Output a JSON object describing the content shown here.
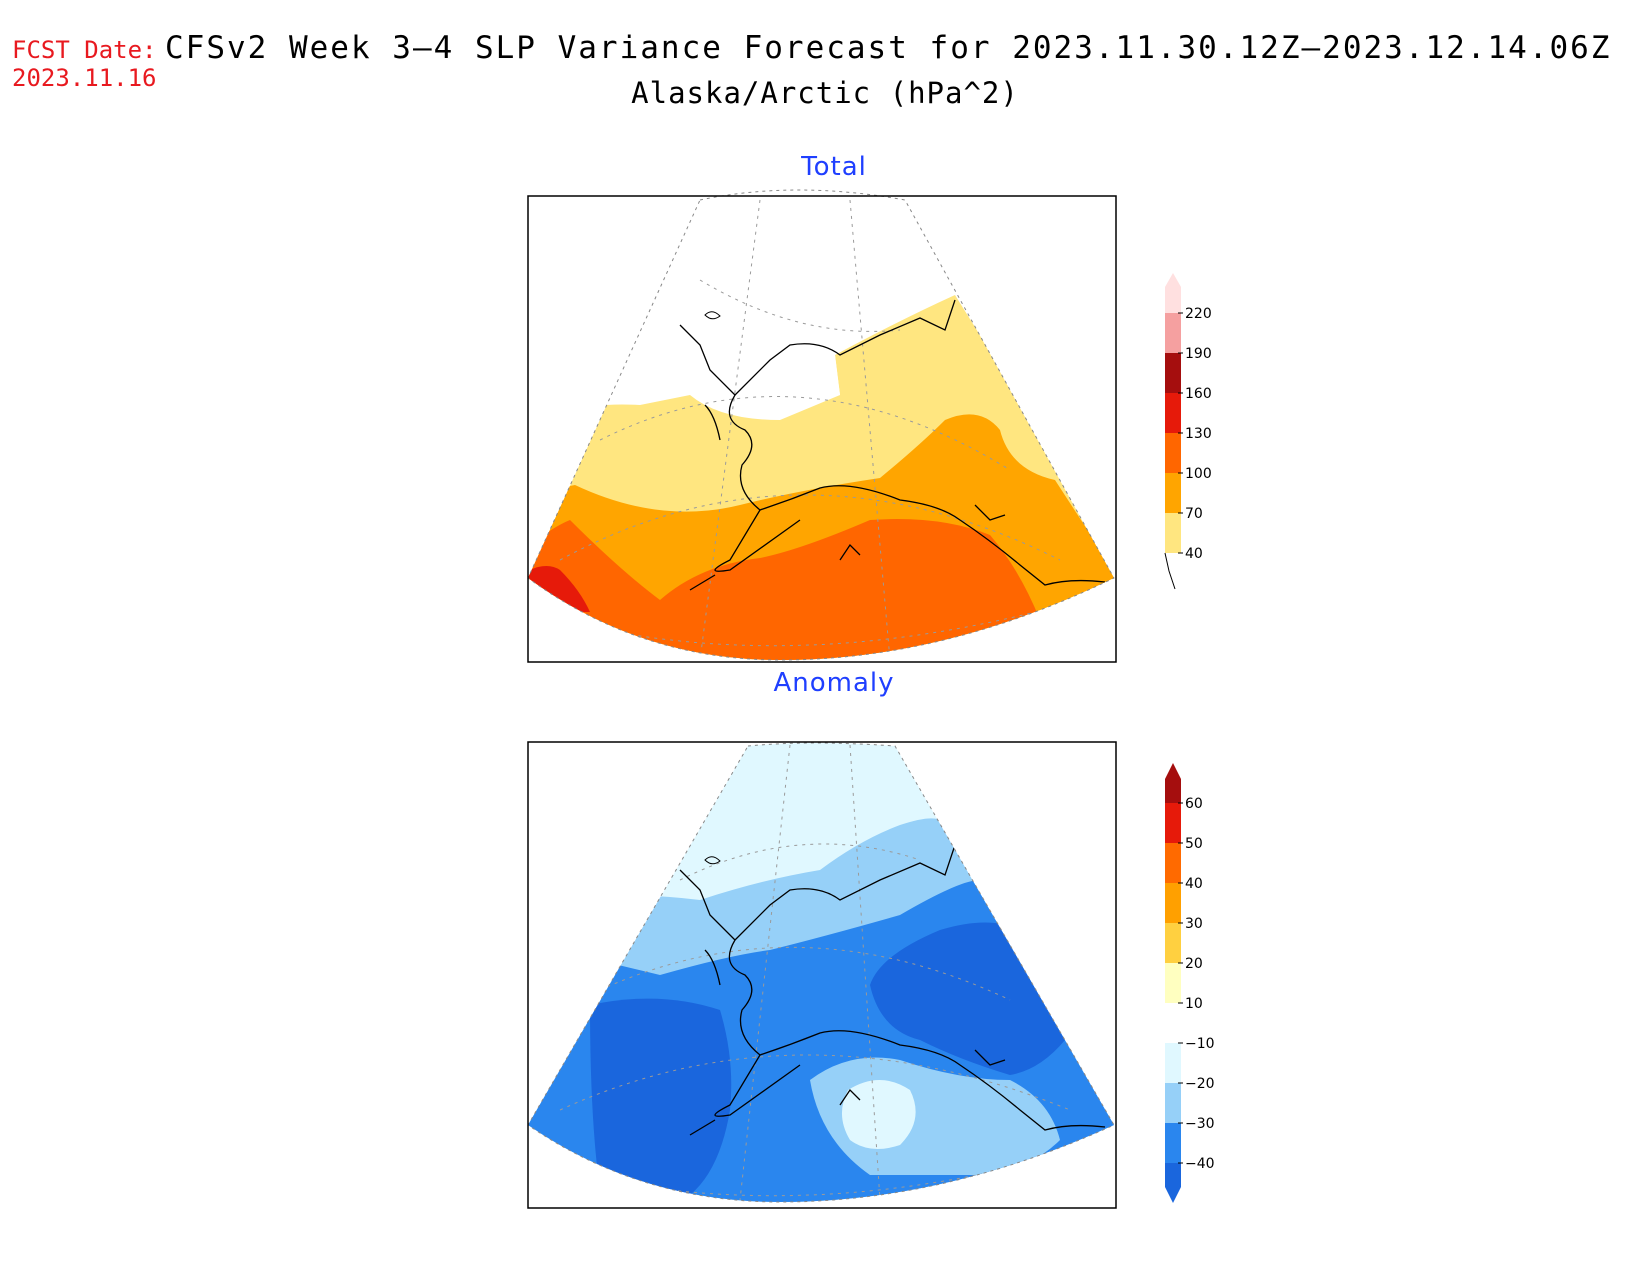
{
  "header": {
    "fcst_label": "FCST Date:",
    "fcst_date": "2023.11.16",
    "title": "CFSv2 Week 3–4 SLP Variance Forecast for 2023.11.30.12Z–2023.12.14.06Z",
    "subtitle": "Alaska/Arctic (hPa^2)"
  },
  "panels": [
    {
      "title": "Total"
    },
    {
      "title": "Anomaly"
    }
  ],
  "colorbars": {
    "total": {
      "levels": [
        "40",
        "70",
        "100",
        "130",
        "160",
        "190",
        "220"
      ],
      "colors": [
        "#ffe680",
        "#ffa500",
        "#ff6600",
        "#e61a0a",
        "#a50e0e",
        "#f5a0a0",
        "#ffe0e0"
      ]
    },
    "anomaly": {
      "levels": [
        "−40",
        "−30",
        "−20",
        "−10",
        "10",
        "20",
        "30",
        "40",
        "50",
        "60"
      ],
      "colors": [
        "#1a66dd",
        "#2a86ee",
        "#96d0f8",
        "#e0f8ff",
        "#ffffff",
        "#ffffc0",
        "#ffd040",
        "#ffa000",
        "#ff6a00",
        "#e61a0a",
        "#a50e0e"
      ]
    }
  },
  "colors": {
    "title_red": "#e8191f",
    "panel_title_blue": "#1f3fff"
  }
}
